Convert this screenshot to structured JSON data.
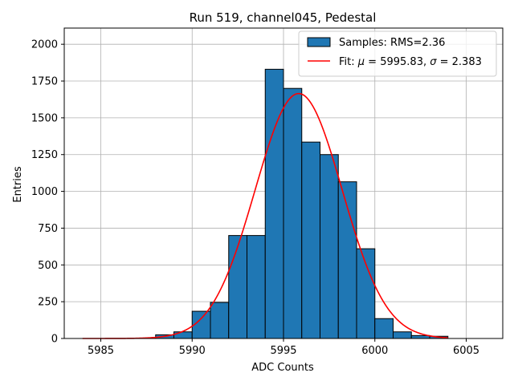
{
  "chart_data": {
    "type": "bar",
    "title": "Run 519, channel045, Pedestal",
    "xlabel": "ADC Counts",
    "ylabel": "Entries",
    "xlim": [
      5983,
      6007
    ],
    "ylim": [
      0,
      2110
    ],
    "x_ticks": [
      5985,
      5990,
      5995,
      6000,
      6005
    ],
    "y_ticks": [
      0,
      250,
      500,
      750,
      1000,
      1250,
      1500,
      1750,
      2000
    ],
    "grid": true,
    "legend_position": "top-right",
    "bin_width": 1,
    "bins": [
      {
        "left": 5984,
        "count": 0
      },
      {
        "left": 5985,
        "count": 0
      },
      {
        "left": 5986,
        "count": 0
      },
      {
        "left": 5987,
        "count": 2
      },
      {
        "left": 5988,
        "count": 25
      },
      {
        "left": 5989,
        "count": 45
      },
      {
        "left": 5990,
        "count": 185
      },
      {
        "left": 5991,
        "count": 245
      },
      {
        "left": 5992,
        "count": 700
      },
      {
        "left": 5993,
        "count": 700
      },
      {
        "left": 5994,
        "count": 1830
      },
      {
        "left": 5995,
        "count": 1700
      },
      {
        "left": 5996,
        "count": 1335
      },
      {
        "left": 5997,
        "count": 1250
      },
      {
        "left": 5998,
        "count": 1065
      },
      {
        "left": 5999,
        "count": 610
      },
      {
        "left": 6000,
        "count": 135
      },
      {
        "left": 6001,
        "count": 45
      },
      {
        "left": 6002,
        "count": 20
      },
      {
        "left": 6003,
        "count": 15
      }
    ],
    "fit": {
      "mu": 5995.83,
      "sigma": 2.383,
      "peak": 1665,
      "x_range": [
        5984,
        6004
      ]
    },
    "legend": [
      {
        "label": "Samples: RMS=2.36",
        "kind": "bar",
        "color": "#1f77b4"
      },
      {
        "label_prefix": "Fit: ",
        "mu_symbol": "μ",
        "mu_text": " = 5995.83, ",
        "sigma_symbol": "σ",
        "sigma_text": " = 2.383",
        "kind": "line",
        "color": "#ff0000"
      }
    ],
    "colors": {
      "bar": "#1f77b4",
      "bar_edge": "#000000",
      "fit": "#ff0000",
      "grid": "#b0b0b0"
    }
  }
}
